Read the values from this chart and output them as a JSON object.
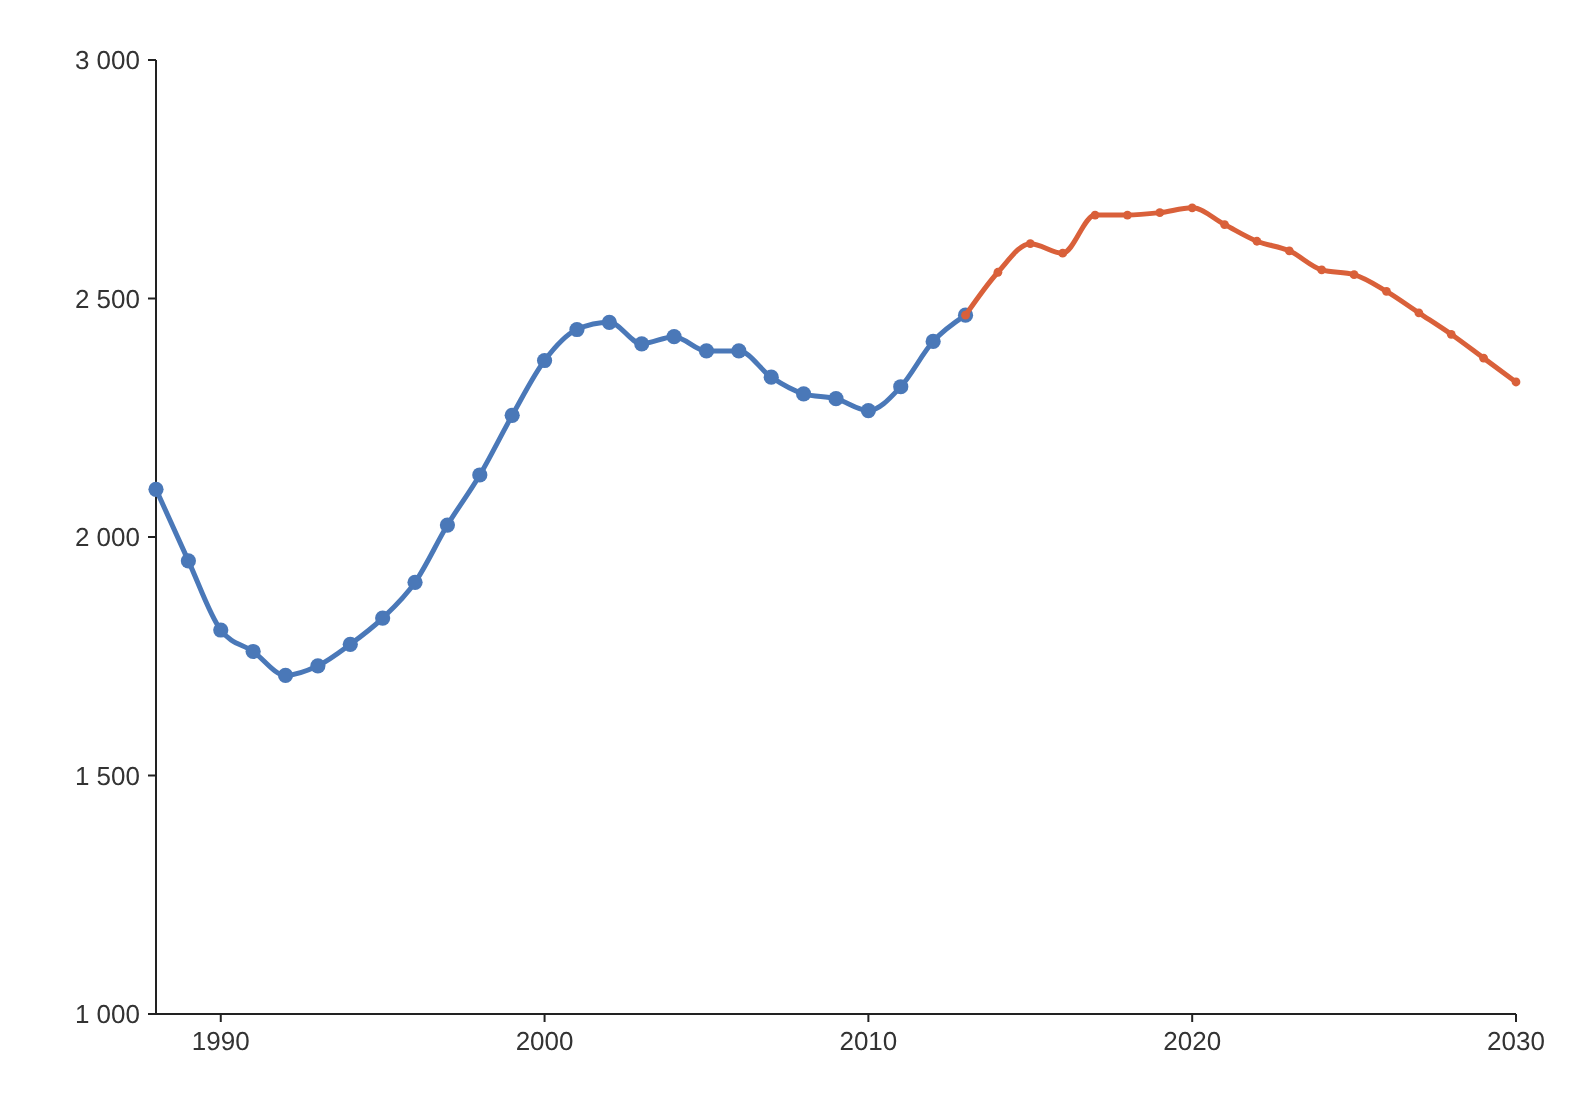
{
  "chart_data": {
    "type": "line",
    "marker": "circle",
    "grid": false,
    "xlim": [
      1988,
      2030
    ],
    "xticks": [
      1990,
      2000,
      2010,
      2020,
      2030
    ],
    "ylim": [
      1000,
      3000
    ],
    "yticks": [
      {
        "value": 1000,
        "label": "1 000"
      },
      {
        "value": 1500,
        "label": "1 500"
      },
      {
        "value": 2000,
        "label": "2 000"
      },
      {
        "value": 2500,
        "label": "2 500"
      },
      {
        "value": 3000,
        "label": "3 000"
      }
    ],
    "series": [
      {
        "color": "#4a78b8",
        "x": [
          1988,
          1989,
          1990,
          1991,
          1992,
          1993,
          1994,
          1995,
          1996,
          1997,
          1998,
          1999,
          2000,
          2001,
          2002,
          2003,
          2004,
          2005,
          2006,
          2007,
          2008,
          2009,
          2010,
          2011,
          2012,
          2013
        ],
        "values": [
          2100,
          1950,
          1805,
          1760,
          1710,
          1730,
          1775,
          1830,
          1905,
          2025,
          2130,
          2255,
          2370,
          2435,
          2450,
          2405,
          2420,
          2390,
          2390,
          2335,
          2300,
          2290,
          2265,
          2315,
          2410,
          2465
        ]
      },
      {
        "color": "#d9603a",
        "x": [
          2013,
          2014,
          2015,
          2016,
          2017,
          2018,
          2019,
          2020,
          2021,
          2022,
          2023,
          2024,
          2025,
          2026,
          2027,
          2028,
          2029,
          2030
        ],
        "values": [
          2465,
          2555,
          2615,
          2595,
          2675,
          2675,
          2680,
          2690,
          2655,
          2620,
          2600,
          2560,
          2550,
          2515,
          2470,
          2425,
          2375,
          2325
        ]
      }
    ]
  }
}
